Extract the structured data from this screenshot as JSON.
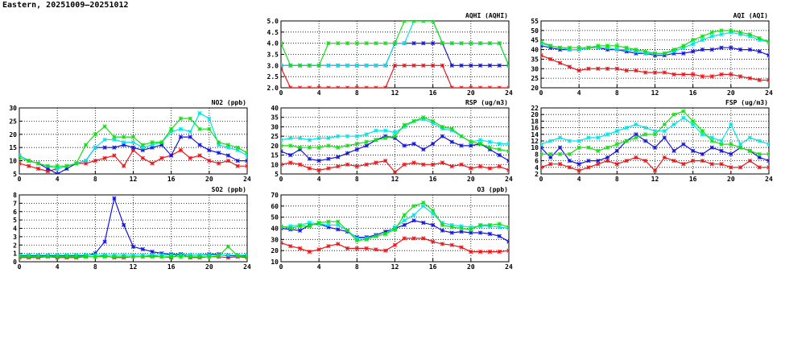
{
  "page": {
    "title": "Eastern, 20251009–20251012"
  },
  "colors": {
    "red": "#e8171a",
    "blue": "#1515e0",
    "cyan": "#00e5e5",
    "green": "#12e012",
    "grid": "#000000"
  },
  "chart_data": [
    {
      "type": "line",
      "title": "AQHI (AQHI)",
      "x": [
        0,
        1,
        2,
        3,
        4,
        5,
        6,
        7,
        8,
        9,
        10,
        11,
        12,
        13,
        14,
        15,
        16,
        17,
        18,
        19,
        20,
        21,
        22,
        23,
        24
      ],
      "xticks": [
        0,
        4,
        8,
        12,
        16,
        20,
        24
      ],
      "xlim": [
        0,
        24
      ],
      "ylim": [
        2,
        5
      ],
      "yticks": [
        "2.0",
        "2.5",
        "3.0",
        "3.5",
        "4.0",
        "4.5",
        "5.0"
      ],
      "series": [
        {
          "color": "red",
          "values": [
            2.9,
            2,
            2,
            2,
            2,
            2,
            2,
            2,
            2,
            2,
            2,
            2,
            3,
            3,
            3,
            3,
            3,
            3,
            2,
            2,
            2,
            2,
            2,
            2,
            2
          ]
        },
        {
          "color": "blue",
          "values": [
            3,
            3,
            3,
            3,
            3,
            3,
            3,
            3,
            3,
            3,
            3,
            3,
            4,
            4,
            4,
            4,
            4,
            4,
            3,
            3,
            3,
            3,
            3,
            3,
            3
          ]
        },
        {
          "color": "cyan",
          "values": [
            3,
            3,
            3,
            3,
            3,
            3,
            3,
            3,
            3,
            3,
            3,
            3,
            4,
            4,
            5,
            5,
            5,
            4,
            4,
            4,
            4,
            4,
            4,
            4,
            3
          ]
        },
        {
          "color": "green",
          "values": [
            4,
            3,
            3,
            3,
            3,
            4,
            4,
            4,
            4,
            4,
            4,
            4,
            4,
            5,
            5,
            5,
            5,
            4,
            4,
            4,
            4,
            4,
            4,
            4,
            3
          ]
        }
      ]
    },
    {
      "type": "line",
      "title": "AQI (AQI)",
      "x": [
        0,
        1,
        2,
        3,
        4,
        5,
        6,
        7,
        8,
        9,
        10,
        11,
        12,
        13,
        14,
        15,
        16,
        17,
        18,
        19,
        20,
        21,
        22,
        23,
        24
      ],
      "xticks": [
        0,
        4,
        8,
        12,
        16,
        20,
        24
      ],
      "xlim": [
        0,
        24
      ],
      "ylim": [
        20,
        55
      ],
      "yticks": [
        "20",
        "25",
        "30",
        "35",
        "40",
        "45",
        "50",
        "55"
      ],
      "series": [
        {
          "color": "red",
          "values": [
            37,
            35,
            33,
            31,
            29,
            30,
            30,
            30,
            30,
            29,
            29,
            28,
            28,
            28,
            27,
            27,
            27,
            26,
            26,
            27,
            27,
            26,
            25,
            24,
            24
          ]
        },
        {
          "color": "blue",
          "values": [
            42,
            41,
            40,
            40,
            40,
            41,
            41,
            40,
            40,
            39,
            38,
            38,
            37,
            37,
            38,
            38,
            39,
            40,
            40,
            41,
            41,
            40,
            40,
            39,
            37
          ]
        },
        {
          "color": "cyan",
          "values": [
            43,
            42,
            41,
            40,
            40,
            41,
            41,
            41,
            40,
            40,
            39,
            38,
            38,
            38,
            39,
            41,
            43,
            45,
            47,
            48,
            49,
            48,
            47,
            45,
            44
          ]
        },
        {
          "color": "green",
          "values": [
            44,
            42,
            41,
            41,
            41,
            41,
            42,
            42,
            42,
            41,
            40,
            39,
            38,
            38,
            40,
            42,
            45,
            47,
            49,
            50,
            50,
            49,
            48,
            46,
            44
          ]
        }
      ]
    },
    {
      "type": "line",
      "title": "NO2 (ppb)",
      "x": [
        0,
        1,
        2,
        3,
        4,
        5,
        6,
        7,
        8,
        9,
        10,
        11,
        12,
        13,
        14,
        15,
        16,
        17,
        18,
        19,
        20,
        21,
        22,
        23,
        24
      ],
      "xticks": [
        0,
        4,
        8,
        12,
        16,
        20,
        24
      ],
      "xlim": [
        0,
        24
      ],
      "ylim": [
        5,
        30
      ],
      "yticks": [
        "5",
        "10",
        "15",
        "20",
        "25",
        "30"
      ],
      "series": [
        {
          "color": "red",
          "values": [
            9,
            8,
            7,
            6,
            7,
            8,
            9,
            9,
            10,
            11,
            12,
            8,
            14,
            11,
            9,
            11,
            12,
            14,
            11,
            12,
            10,
            9,
            10,
            8,
            8
          ]
        },
        {
          "color": "blue",
          "values": [
            12,
            10,
            9,
            7,
            5,
            7,
            9,
            10,
            15,
            15,
            15,
            16,
            15,
            14,
            15,
            16,
            12,
            19,
            19,
            16,
            14,
            13,
            12,
            10,
            10
          ]
        },
        {
          "color": "cyan",
          "values": [
            12,
            10,
            9,
            8,
            7,
            8,
            9,
            10,
            15,
            18,
            18,
            17,
            17,
            15,
            16,
            17,
            21,
            22,
            21,
            28,
            26,
            16,
            15,
            14,
            12
          ]
        },
        {
          "color": "green",
          "values": [
            11,
            10,
            9,
            8,
            8,
            8,
            9,
            16,
            20,
            23,
            19,
            19,
            19,
            16,
            17,
            17,
            22,
            26,
            26,
            22,
            22,
            17,
            16,
            15,
            13
          ]
        }
      ]
    },
    {
      "type": "line",
      "title": "RSP (ug/m3)",
      "x": [
        0,
        1,
        2,
        3,
        4,
        5,
        6,
        7,
        8,
        9,
        10,
        11,
        12,
        13,
        14,
        15,
        16,
        17,
        18,
        19,
        20,
        21,
        22,
        23,
        24
      ],
      "xticks": [
        0,
        4,
        8,
        12,
        16,
        20,
        24
      ],
      "xlim": [
        0,
        24
      ],
      "ylim": [
        5,
        40
      ],
      "yticks": [
        "5",
        "10",
        "15",
        "20",
        "25",
        "30",
        "35",
        "40"
      ],
      "series": [
        {
          "color": "red",
          "values": [
            10,
            11,
            10,
            8,
            7,
            8,
            9,
            10,
            9,
            10,
            11,
            12,
            6,
            10,
            11,
            10,
            10,
            11,
            9,
            10,
            8,
            9,
            8,
            9,
            7
          ]
        },
        {
          "color": "blue",
          "values": [
            17,
            15,
            18,
            13,
            12,
            13,
            14,
            16,
            18,
            20,
            23,
            25,
            24,
            20,
            21,
            18,
            21,
            25,
            22,
            20,
            20,
            21,
            18,
            15,
            12
          ]
        },
        {
          "color": "cyan",
          "values": [
            23,
            24,
            24,
            23,
            24,
            24,
            25,
            25,
            25,
            26,
            28,
            28,
            27,
            30,
            33,
            34,
            32,
            29,
            28,
            25,
            22,
            23,
            22,
            21,
            21
          ]
        },
        {
          "color": "green",
          "values": [
            20,
            20,
            19,
            19,
            19,
            20,
            19,
            20,
            21,
            22,
            23,
            24,
            25,
            31,
            33,
            35,
            33,
            30,
            29,
            25,
            22,
            21,
            19,
            18,
            17
          ]
        }
      ]
    },
    {
      "type": "line",
      "title": "FSP (ug/m3)",
      "x": [
        0,
        1,
        2,
        3,
        4,
        5,
        6,
        7,
        8,
        9,
        10,
        11,
        12,
        13,
        14,
        15,
        16,
        17,
        18,
        19,
        20,
        21,
        22,
        23,
        24
      ],
      "xticks": [
        0,
        4,
        8,
        12,
        16,
        20,
        24
      ],
      "xlim": [
        0,
        24
      ],
      "ylim": [
        2,
        22
      ],
      "yticks": [
        "2",
        "4",
        "6",
        "8",
        "10",
        "12",
        "14",
        "16",
        "18",
        "20",
        "22"
      ],
      "series": [
        {
          "color": "red",
          "values": [
            4,
            5,
            5,
            4,
            3,
            4,
            5,
            6,
            5,
            6,
            7,
            6,
            3,
            7,
            6,
            5,
            6,
            6,
            5,
            5,
            4,
            4,
            6,
            4,
            4
          ]
        },
        {
          "color": "blue",
          "values": [
            10,
            7,
            10,
            6,
            5,
            6,
            6,
            7,
            9,
            12,
            14,
            12,
            10,
            13,
            9,
            11,
            9,
            8,
            10,
            9,
            8,
            10,
            9,
            7,
            6
          ]
        },
        {
          "color": "cyan",
          "values": [
            11,
            12,
            13,
            12,
            12,
            13,
            13,
            14,
            15,
            16,
            17,
            16,
            15,
            15,
            17,
            19,
            17,
            14,
            13,
            12,
            17,
            11,
            13,
            12,
            11
          ]
        },
        {
          "color": "green",
          "values": [
            8,
            8,
            8,
            8,
            10,
            10,
            9,
            10,
            11,
            12,
            13,
            14,
            14,
            17,
            20,
            21,
            18,
            15,
            12,
            11,
            11,
            10,
            9,
            8,
            8
          ]
        }
      ]
    },
    {
      "type": "line",
      "title": "SO2 (ppb)",
      "x": [
        0,
        1,
        2,
        3,
        4,
        5,
        6,
        7,
        8,
        9,
        10,
        11,
        12,
        13,
        14,
        15,
        16,
        17,
        18,
        19,
        20,
        21,
        22,
        23,
        24
      ],
      "xticks": [
        0,
        4,
        8,
        12,
        16,
        20,
        24
      ],
      "xlim": [
        0,
        24
      ],
      "ylim": [
        0,
        8
      ],
      "yticks": [
        "0",
        "1",
        "2",
        "3",
        "4",
        "5",
        "6",
        "7",
        "8"
      ],
      "series": [
        {
          "color": "red",
          "values": [
            0.5,
            0.5,
            0.5,
            0.6,
            0.5,
            0.5,
            0.5,
            0.6,
            0.6,
            0.7,
            0.5,
            0.5,
            0.6,
            0.6,
            0.7,
            0.6,
            0.5,
            0.9,
            0.5,
            0.5,
            0.6,
            0.6,
            0.5,
            0.6,
            0.5
          ]
        },
        {
          "color": "blue",
          "values": [
            0.7,
            0.7,
            0.7,
            0.7,
            0.7,
            0.7,
            0.7,
            0.7,
            1,
            2.4,
            7.6,
            4.4,
            1.8,
            1.5,
            1.2,
            1,
            0.9,
            0.9,
            0.8,
            0.8,
            0.9,
            0.9,
            0.7,
            0.7,
            0.7
          ]
        },
        {
          "color": "cyan",
          "values": [
            0.8,
            0.8,
            0.8,
            0.8,
            0.8,
            0.8,
            0.8,
            0.8,
            0.8,
            0.8,
            0.8,
            0.8,
            0.8,
            0.8,
            0.8,
            0.8,
            0.8,
            0.8,
            0.8,
            0.8,
            0.8,
            0.8,
            0.8,
            0.8,
            0.8
          ]
        },
        {
          "color": "green",
          "values": [
            0.6,
            0.6,
            0.6,
            0.6,
            0.6,
            0.6,
            0.6,
            0.6,
            0.6,
            0.6,
            0.6,
            0.6,
            0.6,
            0.6,
            0.6,
            0.6,
            0.6,
            0.6,
            0.6,
            0.6,
            0.6,
            0.7,
            1.8,
            0.7,
            0.6
          ]
        }
      ]
    },
    {
      "type": "line",
      "title": "O3 (ppb)",
      "x": [
        0,
        1,
        2,
        3,
        4,
        5,
        6,
        7,
        8,
        9,
        10,
        11,
        12,
        13,
        14,
        15,
        16,
        17,
        18,
        19,
        20,
        21,
        22,
        23,
        24
      ],
      "xticks": [
        0,
        4,
        8,
        12,
        16,
        20,
        24
      ],
      "xlim": [
        0,
        24
      ],
      "ylim": [
        10,
        70
      ],
      "yticks": [
        "10",
        "20",
        "30",
        "40",
        "50",
        "60",
        "70"
      ],
      "series": [
        {
          "color": "red",
          "values": [
            27,
            24,
            22,
            19,
            21,
            24,
            26,
            22,
            22,
            22,
            21,
            20,
            25,
            31,
            31,
            31,
            28,
            26,
            25,
            23,
            19,
            19,
            19,
            19,
            20
          ]
        },
        {
          "color": "blue",
          "values": [
            40,
            39,
            38,
            43,
            44,
            41,
            39,
            37,
            32,
            32,
            34,
            37,
            40,
            43,
            47,
            45,
            43,
            38,
            36,
            37,
            36,
            36,
            35,
            33,
            28
          ]
        },
        {
          "color": "cyan",
          "values": [
            41,
            42,
            43,
            45,
            44,
            43,
            43,
            38,
            31,
            31,
            33,
            35,
            41,
            47,
            52,
            60,
            53,
            45,
            43,
            42,
            41,
            42,
            42,
            41,
            40
          ]
        },
        {
          "color": "green",
          "values": [
            42,
            40,
            42,
            42,
            45,
            46,
            46,
            38,
            29,
            30,
            33,
            35,
            39,
            52,
            60,
            63,
            56,
            43,
            41,
            40,
            39,
            43,
            43,
            44,
            41
          ]
        }
      ]
    }
  ]
}
